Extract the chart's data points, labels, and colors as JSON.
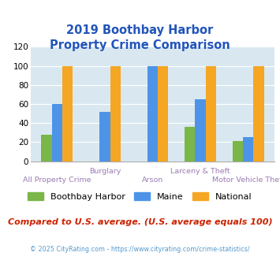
{
  "title": "2019 Boothbay Harbor\nProperty Crime Comparison",
  "title_color": "#2255bb",
  "categories": [
    "All Property Crime",
    "Burglary",
    "Arson",
    "Larceny & Theft",
    "Motor Vehicle Theft"
  ],
  "cat_labels_row1": [
    "",
    "Burglary",
    "",
    "Larceny & Theft",
    ""
  ],
  "cat_labels_row2": [
    "All Property Crime",
    "",
    "Arson",
    "",
    "Motor Vehicle Theft"
  ],
  "series": {
    "Boothbay Harbor": [
      28,
      0,
      0,
      36,
      21
    ],
    "Maine": [
      60,
      52,
      100,
      65,
      25
    ],
    "National": [
      100,
      100,
      100,
      100,
      100
    ]
  },
  "colors": {
    "Boothbay Harbor": "#7ab648",
    "Maine": "#4d94e8",
    "National": "#f5a623"
  },
  "ylim": [
    0,
    120
  ],
  "yticks": [
    0,
    20,
    40,
    60,
    80,
    100,
    120
  ],
  "plot_bg": "#d9e8f0",
  "xlabel_color": "#9b7bb5",
  "subtitle_note": "Compared to U.S. average. (U.S. average equals 100)",
  "subtitle_note_color": "#cc2200",
  "copyright": "© 2025 CityRating.com - https://www.cityrating.com/crime-statistics/",
  "copyright_color": "#5599cc"
}
